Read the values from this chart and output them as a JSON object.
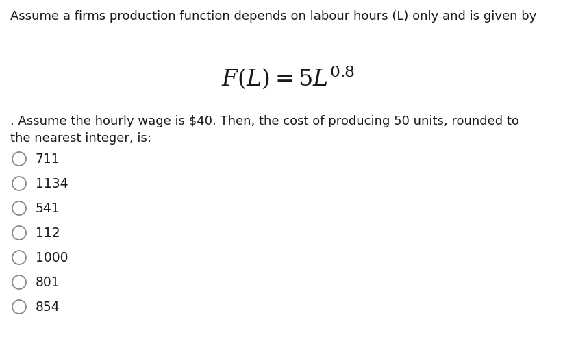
{
  "background_color": "#ffffff",
  "title_line": "Assume a firms production function depends on labour hours (L) only and is given by",
  "formula": "$\\mathit{F}(\\mathit{L}) = 5\\mathit{L}^{0.8}$",
  "description_line1": ". Assume the hourly wage is $40. Then, the cost of producing 50 units, rounded to",
  "description_line2": "the nearest integer, is:",
  "options": [
    "711",
    "1134",
    "541",
    "112",
    "1000",
    "801",
    "854"
  ],
  "font_color": "#1a1a1a",
  "circle_color": "#888888",
  "title_fontsize": 13.0,
  "formula_fontsize": 24,
  "desc_fontsize": 13.0,
  "option_fontsize": 13.5,
  "fig_width": 8.41,
  "fig_height": 5.08,
  "dpi": 100
}
